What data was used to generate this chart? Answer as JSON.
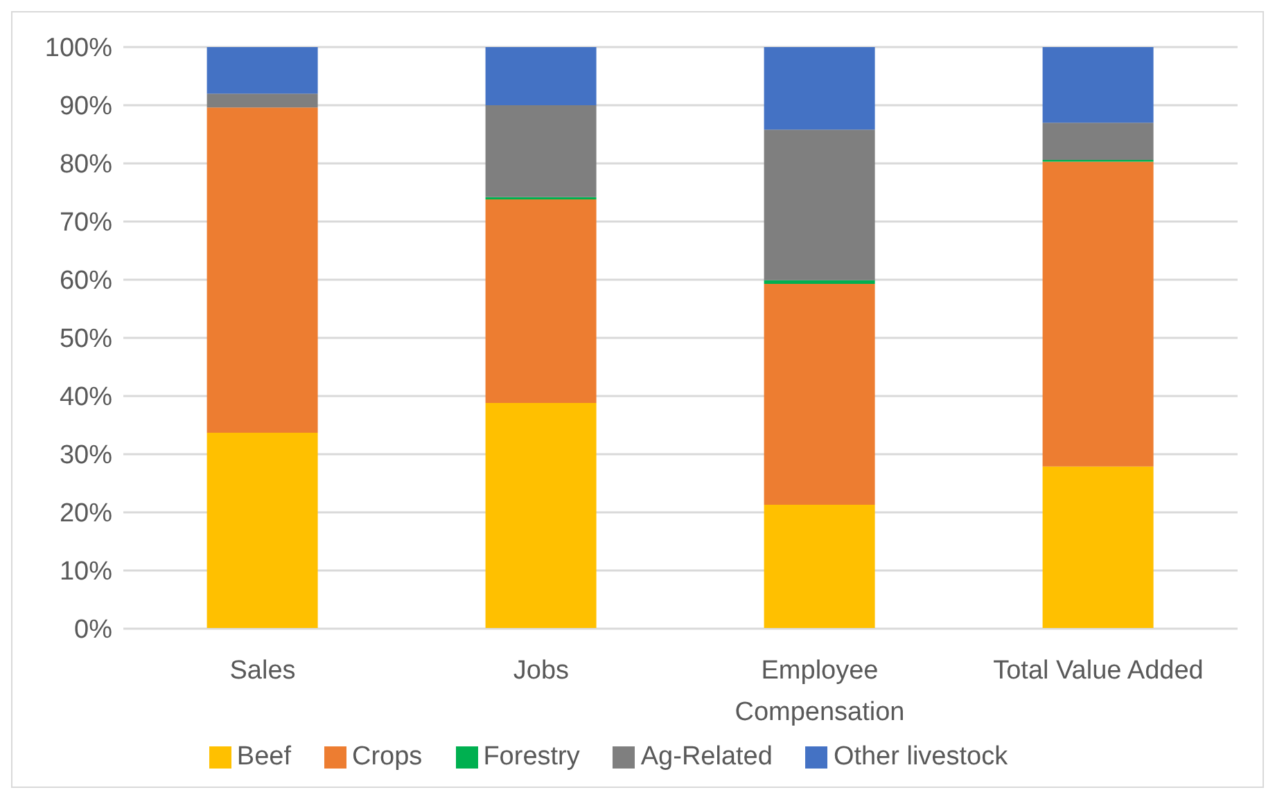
{
  "chart_data": {
    "type": "bar",
    "stacked": true,
    "categories": [
      "Sales",
      "Jobs",
      "Employee Compensation",
      "Total Value Added"
    ],
    "series": [
      {
        "name": "Beef",
        "color": "#ffc000",
        "values": [
          33.7,
          38.8,
          21.3,
          27.9
        ]
      },
      {
        "name": "Crops",
        "color": "#ed7d31",
        "values": [
          55.9,
          35.0,
          38.0,
          52.4
        ]
      },
      {
        "name": "Forestry",
        "color": "#00b050",
        "values": [
          null,
          0.4,
          0.6,
          0.3
        ]
      },
      {
        "name": "Ag-Related",
        "color": "#7f7f7f",
        "values": [
          2.4,
          15.8,
          25.9,
          6.4
        ]
      },
      {
        "name": "Other livestock",
        "color": "#4472c4",
        "values": [
          8.0,
          10.0,
          14.2,
          13.0
        ]
      }
    ],
    "ylim": [
      0,
      100
    ],
    "yticks": [
      {
        "value": 0,
        "label": "0%"
      },
      {
        "value": 10,
        "label": "10%"
      },
      {
        "value": 20,
        "label": "20%"
      },
      {
        "value": 30,
        "label": "30%"
      },
      {
        "value": 40,
        "label": "40%"
      },
      {
        "value": 50,
        "label": "50%"
      },
      {
        "value": 60,
        "label": "60%"
      },
      {
        "value": 70,
        "label": "70%"
      },
      {
        "value": 80,
        "label": "80%"
      },
      {
        "value": 90,
        "label": "90%"
      },
      {
        "value": 100,
        "label": "100%"
      }
    ],
    "grid": "y",
    "legend": "bottom"
  }
}
